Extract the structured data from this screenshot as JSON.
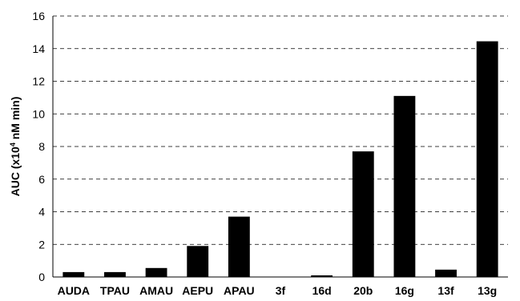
{
  "chart_data": {
    "type": "bar",
    "title": "",
    "xlabel": "",
    "ylabel_parts": {
      "pre": "AUC  (x10",
      "sup": "4",
      "post": " nM min)"
    },
    "categories": [
      "AUDA",
      "TPAU",
      "AMAU",
      "AEPU",
      "APAU",
      "3f",
      "16d",
      "20b",
      "16g",
      "13f",
      "13g"
    ],
    "values": [
      0.3,
      0.3,
      0.55,
      1.9,
      3.7,
      0.0,
      0.1,
      7.7,
      11.1,
      0.45,
      14.45
    ],
    "ylim": [
      0,
      16
    ],
    "yticks": [
      "0",
      "2",
      "4",
      "6",
      "8",
      "10",
      "12",
      "14",
      "16"
    ],
    "grid": "horizontal dashed",
    "bar_color": "#000000",
    "legend": "none"
  }
}
